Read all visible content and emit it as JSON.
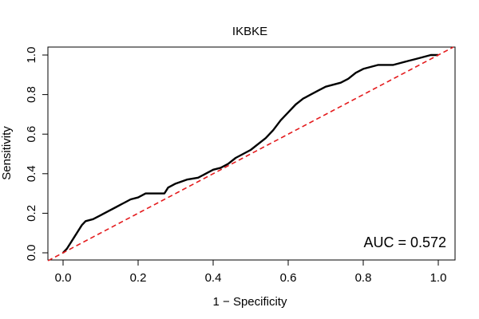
{
  "chart_data": {
    "type": "line",
    "title": "IKBKE",
    "xlabel": "1 − Specificity",
    "ylabel": "Sensitivity",
    "xlim": [
      0.0,
      1.0
    ],
    "ylim": [
      0.0,
      1.0
    ],
    "x_ticks": [
      "0.0",
      "0.2",
      "0.4",
      "0.6",
      "0.8",
      "1.0"
    ],
    "y_ticks": [
      "0.0",
      "0.2",
      "0.4",
      "0.6",
      "0.8",
      "1.0"
    ],
    "grid": false,
    "annotation": "AUC = 0.572",
    "annotation_position": "bottom-right",
    "series": [
      {
        "color": "#000000",
        "style": "solid",
        "x": [
          0.0,
          0.01,
          0.02,
          0.03,
          0.04,
          0.05,
          0.06,
          0.08,
          0.1,
          0.12,
          0.14,
          0.16,
          0.18,
          0.2,
          0.22,
          0.25,
          0.27,
          0.28,
          0.3,
          0.33,
          0.36,
          0.38,
          0.4,
          0.42,
          0.44,
          0.46,
          0.48,
          0.5,
          0.52,
          0.54,
          0.56,
          0.58,
          0.6,
          0.62,
          0.64,
          0.66,
          0.68,
          0.7,
          0.72,
          0.74,
          0.76,
          0.78,
          0.8,
          0.82,
          0.84,
          0.86,
          0.88,
          0.9,
          0.92,
          0.94,
          0.96,
          0.98,
          1.0
        ],
        "y": [
          0.0,
          0.02,
          0.05,
          0.08,
          0.11,
          0.14,
          0.16,
          0.17,
          0.19,
          0.21,
          0.23,
          0.25,
          0.27,
          0.28,
          0.3,
          0.3,
          0.3,
          0.33,
          0.35,
          0.37,
          0.38,
          0.4,
          0.42,
          0.43,
          0.45,
          0.48,
          0.5,
          0.52,
          0.55,
          0.58,
          0.62,
          0.67,
          0.71,
          0.75,
          0.78,
          0.8,
          0.82,
          0.84,
          0.85,
          0.86,
          0.88,
          0.91,
          0.93,
          0.94,
          0.95,
          0.95,
          0.95,
          0.96,
          0.97,
          0.98,
          0.99,
          1.0,
          1.0
        ]
      },
      {
        "color": "#e41a1c",
        "style": "dashed",
        "x": [
          0.0,
          1.0
        ],
        "y": [
          0.0,
          1.0
        ]
      }
    ]
  }
}
